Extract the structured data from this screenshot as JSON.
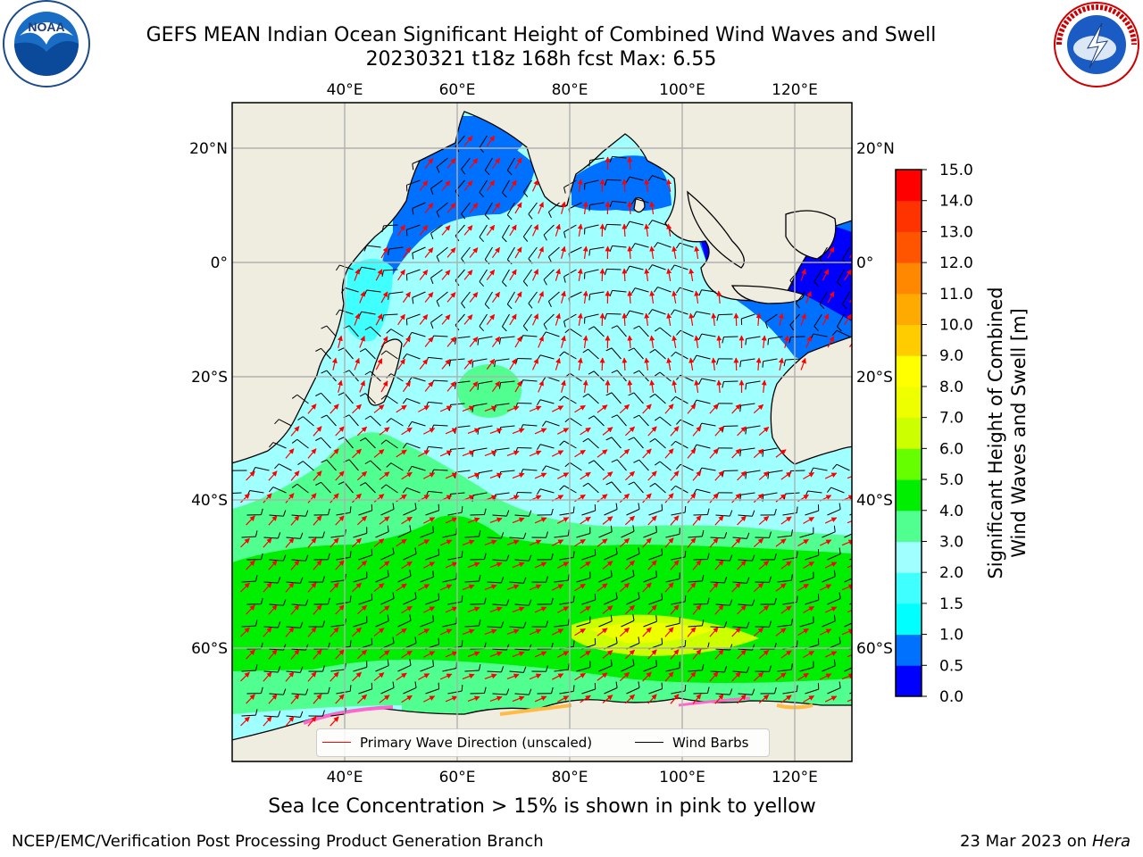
{
  "header": {
    "title_line1": "GEFS MEAN Indian Ocean Significant Height of Combined Wind Waves and Swell",
    "title_line2": "20230321 t18z 168h fcst   Max: 6.55"
  },
  "logos": {
    "noaa": {
      "text": "NOAA",
      "ring_text": "NATIONAL OCEANIC AND ATMOSPHERIC ADMINISTRATION · U.S. DEPARTMENT OF COMMERCE"
    },
    "nws": {
      "ring_text": "NATIONAL WEATHER SERVICE"
    }
  },
  "map": {
    "lon_ticks": [
      "40°E",
      "60°E",
      "80°E",
      "100°E",
      "120°E"
    ],
    "lat_ticks": [
      "20°N",
      "0°",
      "20°S",
      "40°S",
      "60°S"
    ],
    "colors": {
      "land": "#efede0",
      "grid": "#b0b0b0",
      "wave_arrow": "#ff0000",
      "wind_barb": "#000000"
    },
    "legend": {
      "primary_wave": "Primary Wave Direction (unscaled)",
      "wind_barbs": "Wind Barbs"
    }
  },
  "colorbar": {
    "title_line1": "Significant Height of Combined",
    "title_line2": "Wind Waves and Swell [m]",
    "ticks": [
      "0.0",
      "0.5",
      "1.0",
      "1.5",
      "2.0",
      "3.0",
      "4.0",
      "5.0",
      "6.0",
      "7.0",
      "8.0",
      "9.0",
      "10.0",
      "11.0",
      "12.0",
      "13.0",
      "14.0",
      "15.0"
    ],
    "colors": [
      "#0000ff",
      "#0070ff",
      "#00ffff",
      "#40ffff",
      "#a0ffff",
      "#50ff90",
      "#00ee00",
      "#66ff00",
      "#ccff00",
      "#eeff00",
      "#ffff00",
      "#ffcc00",
      "#ffaa00",
      "#ff8800",
      "#ff5500",
      "#ff3300",
      "#ff0000"
    ]
  },
  "footer": {
    "sea_ice_note": "Sea Ice Concentration > 15% is shown in pink to yellow",
    "credit": "NCEP/EMC/Verification Post Processing Product Generation Branch",
    "run_date": "23 Mar 2023 on",
    "machine": "Hera"
  }
}
